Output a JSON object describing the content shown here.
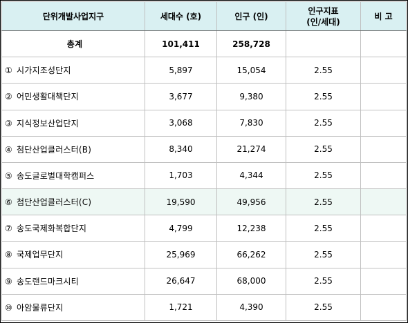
{
  "table": {
    "headers": {
      "district": "단위개발사업지구",
      "households": "세대수 (호)",
      "population": "인구 (인)",
      "index_line1": "인구지표",
      "index_line2": "(인/세대)",
      "remarks": "비 고"
    },
    "total": {
      "label": "총계",
      "households": "101,411",
      "population": "258,728",
      "index": "",
      "remarks": ""
    },
    "rows": [
      {
        "marker": "①",
        "name": "시가지조성단지",
        "households": "5,897",
        "population": "15,054",
        "index": "2.55",
        "remarks": ""
      },
      {
        "marker": "②",
        "name": "어민생활대책단지",
        "households": "3,677",
        "population": "9,380",
        "index": "2.55",
        "remarks": ""
      },
      {
        "marker": "③",
        "name": "지식정보산업단지",
        "households": "3,068",
        "population": "7,830",
        "index": "2.55",
        "remarks": ""
      },
      {
        "marker": "④",
        "name": "첨단산업클러스터(B)",
        "households": "8,340",
        "population": "21,274",
        "index": "2.55",
        "remarks": ""
      },
      {
        "marker": "⑤",
        "name": "송도글로벌대학캠퍼스",
        "households": "1,703",
        "population": "4,344",
        "index": "2.55",
        "remarks": ""
      },
      {
        "marker": "⑥",
        "name": "첨단산업클러스터(C)",
        "households": "19,590",
        "population": "49,956",
        "index": "2.55",
        "remarks": ""
      },
      {
        "marker": "⑦",
        "name": "송도국제화복합단지",
        "households": "4,799",
        "population": "12,238",
        "index": "2.55",
        "remarks": ""
      },
      {
        "marker": "⑧",
        "name": "국제업무단지",
        "households": "25,969",
        "population": "66,262",
        "index": "2.55",
        "remarks": ""
      },
      {
        "marker": "⑨",
        "name": "송도랜드마크시티",
        "households": "26,647",
        "population": "68,000",
        "index": "2.55",
        "remarks": ""
      },
      {
        "marker": "⑩",
        "name": "아암물류단지",
        "households": "1,721",
        "population": "4,390",
        "index": "2.55",
        "remarks": ""
      }
    ]
  },
  "colors": {
    "header_bg": "#d9f0f2",
    "border": "#bfbfbf",
    "highlight_row_bg": "#eef8f4"
  }
}
